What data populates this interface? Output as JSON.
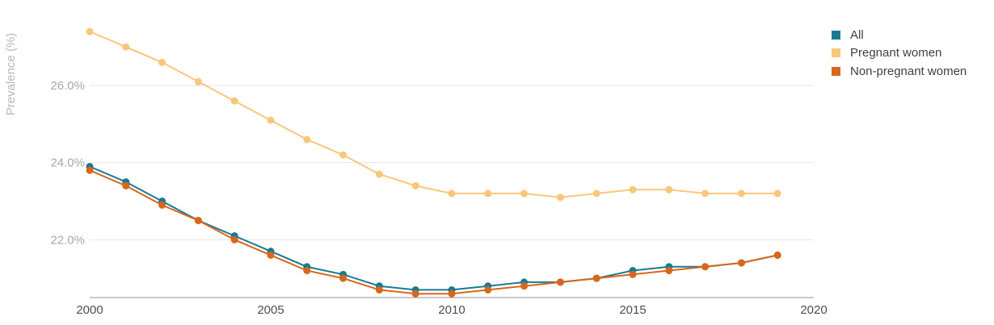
{
  "chart_data": {
    "type": "line",
    "title": "",
    "xlabel": "",
    "ylabel": "Prevalence (%)",
    "xlim": [
      2000,
      2020
    ],
    "ylim": [
      20.5,
      27.8
    ],
    "x_ticks": [
      "2000",
      "2005",
      "2010",
      "2015",
      "2020"
    ],
    "y_ticks": [
      {
        "value": 22,
        "label": "22.0%"
      },
      {
        "value": 24,
        "label": "24.0%"
      },
      {
        "value": 26,
        "label": "26.0%"
      }
    ],
    "grid": true,
    "legend_position": "top-right",
    "x": [
      2000,
      2001,
      2002,
      2003,
      2004,
      2005,
      2006,
      2007,
      2008,
      2009,
      2010,
      2011,
      2012,
      2013,
      2014,
      2015,
      2016,
      2017,
      2018,
      2019
    ],
    "series": [
      {
        "name": "All",
        "color": "#1a7a94",
        "values": [
          23.9,
          23.5,
          23.0,
          22.5,
          22.1,
          21.7,
          21.3,
          21.1,
          20.8,
          20.7,
          20.7,
          20.8,
          20.9,
          20.9,
          21.0,
          21.2,
          21.3,
          21.3,
          21.4,
          21.6
        ]
      },
      {
        "name": "Pregnant women",
        "color": "#f9c77b",
        "values": [
          27.4,
          27.0,
          26.6,
          26.1,
          25.6,
          25.1,
          24.6,
          24.2,
          23.7,
          23.4,
          23.2,
          23.2,
          23.2,
          23.1,
          23.2,
          23.3,
          23.3,
          23.2,
          23.2,
          23.2
        ]
      },
      {
        "name": "Non-pregnant women",
        "color": "#d9661a",
        "values": [
          23.8,
          23.4,
          22.9,
          22.5,
          22.0,
          21.6,
          21.2,
          21.0,
          20.7,
          20.6,
          20.6,
          20.7,
          20.8,
          20.9,
          21.0,
          21.1,
          21.2,
          21.3,
          21.4,
          21.6
        ]
      }
    ]
  }
}
